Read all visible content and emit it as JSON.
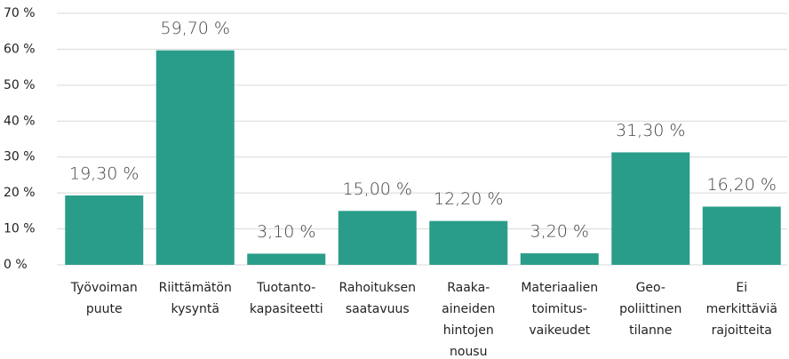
{
  "chart_data": {
    "type": "bar",
    "categories": [
      [
        "Työvoiman",
        "puute"
      ],
      [
        "Riittämätön",
        "kysyntä"
      ],
      [
        "Tuotanto-",
        "kapasiteetti"
      ],
      [
        "Rahoituksen",
        "saatavuus"
      ],
      [
        "Raaka-",
        "aineiden",
        "hintojen",
        "nousu"
      ],
      [
        "Materiaalien",
        "toimitus-",
        "vaikeudet"
      ],
      [
        "Geo-",
        "poliittinen",
        "tilanne"
      ],
      [
        "Ei",
        "merkittäviä",
        "rajoitteita"
      ]
    ],
    "values": [
      19.3,
      59.7,
      3.1,
      15.0,
      12.2,
      3.2,
      31.3,
      16.2
    ],
    "value_labels": [
      "19,30 %",
      "59,70 %",
      "3,10 %",
      "15,00 %",
      "12,20 %",
      "3,20 %",
      "31,30 %",
      "16,20 %"
    ],
    "color": "#2a9d8a",
    "ylim": [
      0,
      70
    ],
    "yticks": [
      {
        "value": 0,
        "label": "0 %"
      },
      {
        "value": 10,
        "label": "10 %"
      },
      {
        "value": 20,
        "label": "20 %"
      },
      {
        "value": 30,
        "label": "30 %"
      },
      {
        "value": 40,
        "label": "40 %"
      },
      {
        "value": 50,
        "label": "50 %"
      },
      {
        "value": 60,
        "label": "60 %"
      },
      {
        "value": 70,
        "label": "70 %"
      }
    ],
    "grid": true
  }
}
